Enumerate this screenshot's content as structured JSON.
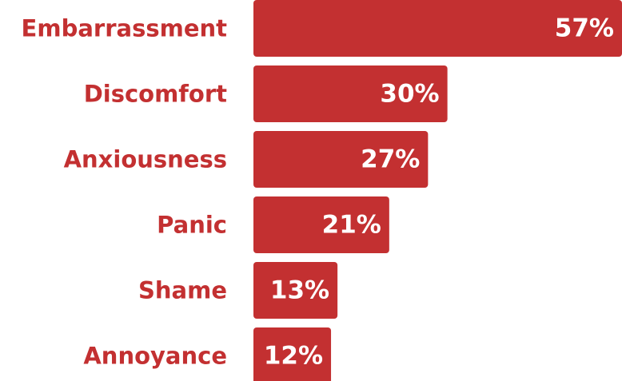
{
  "colors": {
    "bar": "#c33031",
    "label": "#c33031",
    "value_text": "#ffffff",
    "background": "#ffffff"
  },
  "chart_data": {
    "type": "bar",
    "orientation": "horizontal",
    "categories": [
      "Embarrassment",
      "Discomfort",
      "Anxiousness",
      "Panic",
      "Shame",
      "Annoyance"
    ],
    "values": [
      57,
      30,
      27,
      21,
      13,
      12
    ],
    "value_labels": [
      "57%",
      "30%",
      "27%",
      "21%",
      "13%",
      "12%"
    ],
    "unit": "%",
    "title": "",
    "xlabel": "",
    "ylabel": "",
    "xlim": [
      0,
      57
    ],
    "grid": false,
    "legend": "none"
  }
}
